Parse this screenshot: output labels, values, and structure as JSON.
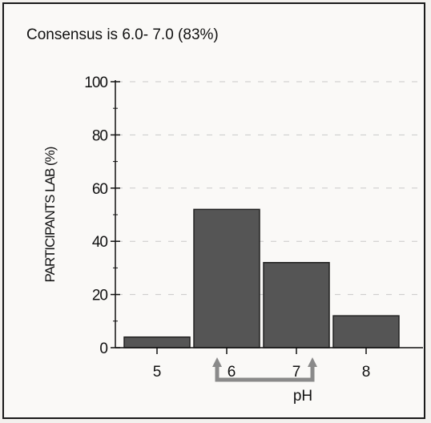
{
  "chart_data": {
    "type": "bar",
    "title": "Consensus is 6.0- 7.0 (83%)",
    "xlabel": "pH",
    "ylabel": "PARTICIPANTS LAB (%)",
    "categories": [
      "5",
      "6",
      "7",
      "8"
    ],
    "values": [
      4,
      52,
      32,
      12
    ],
    "ylim": [
      0,
      100
    ],
    "yticks": [
      "0",
      "20",
      "40",
      "60",
      "80",
      "100"
    ],
    "grid": true,
    "legend": "none",
    "annotation": "consensus range 6.0–7.0 marked by arrows under the x-axis",
    "colors": {
      "bar": "#555555",
      "bar_edge": "#222222",
      "arrow": "#8a8a8a",
      "grid": "#c9c9c9"
    }
  }
}
